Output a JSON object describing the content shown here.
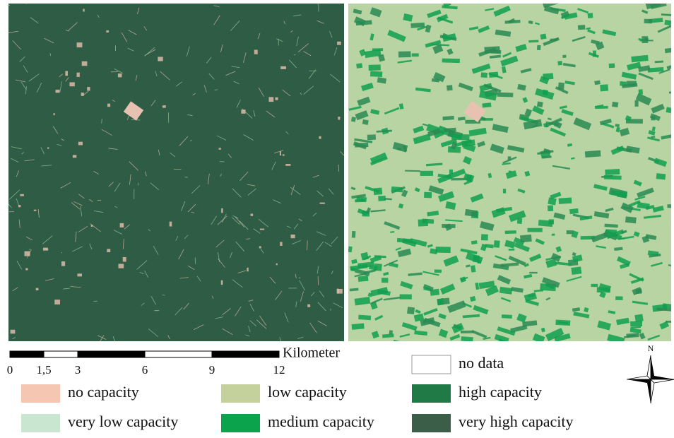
{
  "scale_bar": {
    "unit": "Kilometer",
    "labels": [
      "0",
      "1,5",
      "3",
      "6",
      "9",
      "12"
    ]
  },
  "north_arrow": {
    "label": "N"
  },
  "legend": {
    "items": [
      {
        "label": "no data",
        "color": "#ffffff"
      },
      {
        "label": "no capacity",
        "color": "#f5c6b2"
      },
      {
        "label": "low capacity",
        "color": "#c4d19c"
      },
      {
        "label": "high capacity",
        "color": "#1f7a46"
      },
      {
        "label": "very low capacity",
        "color": "#c8e6d0"
      },
      {
        "label": "medium capacity",
        "color": "#0ca34d"
      },
      {
        "label": "very high capacity",
        "color": "#3b5e48"
      }
    ]
  }
}
